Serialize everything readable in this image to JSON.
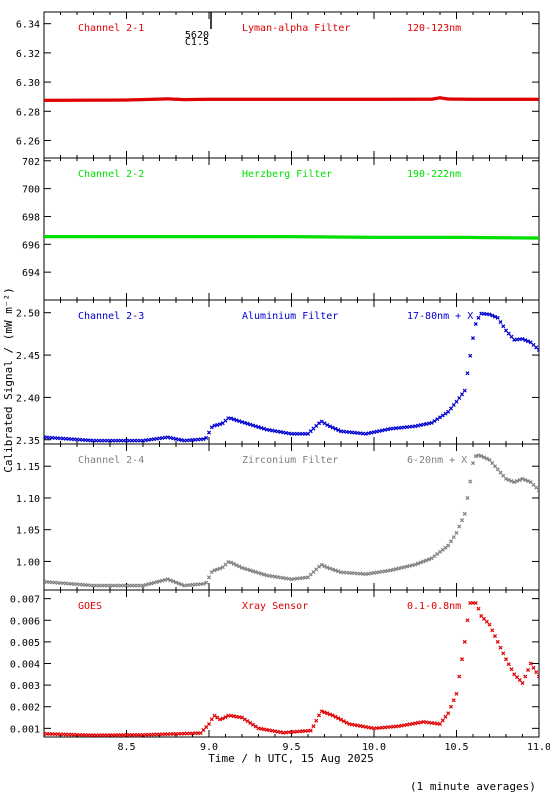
{
  "figure": {
    "ylabel": "Calibrated Signal / (mW m⁻²)",
    "xlabel": "Time / h UTC, 15 Aug 2025",
    "footnote": "(1 minute averages)",
    "xticks": [
      "8.5",
      "9.0",
      "9.5",
      "10.0",
      "10.5",
      "11.0"
    ]
  },
  "chart_data": [
    {
      "type": "scatter",
      "channel": "Channel 2-1",
      "filter": "Lyman-alpha Filter",
      "band": "120-123nm",
      "color": "#e00000",
      "xlim": [
        8.0,
        11.0
      ],
      "ylim": [
        6.248,
        6.348
      ],
      "yticks": [
        "6.26",
        "6.28",
        "6.30",
        "6.32",
        "6.34"
      ],
      "ytick_values": [
        6.26,
        6.28,
        6.3,
        6.32,
        6.34
      ],
      "annotation": {
        "text_top": "5620",
        "text_bottom": "C1.5",
        "x": 9.0
      },
      "series": [
        {
          "x": [
            8.0,
            8.5,
            8.75,
            8.85,
            9.0,
            9.5,
            10.0,
            10.35,
            10.4,
            10.45,
            10.6,
            11.0
          ],
          "y": [
            6.2875,
            6.2877,
            6.2885,
            6.288,
            6.2882,
            6.2882,
            6.2882,
            6.2883,
            6.2892,
            6.2884,
            6.2882,
            6.2882
          ]
        }
      ]
    },
    {
      "type": "scatter",
      "channel": "Channel 2-2",
      "filter": "Herzberg Filter",
      "band": "190-222nm",
      "color": "#00e000",
      "xlim": [
        8.0,
        11.0
      ],
      "ylim": [
        692.0,
        702.2
      ],
      "yticks": [
        "694",
        "696",
        "698",
        "700",
        "702"
      ],
      "ytick_values": [
        694,
        696,
        698,
        700,
        702
      ],
      "series": [
        {
          "x": [
            8.0,
            8.5,
            9.0,
            9.5,
            10.0,
            10.5,
            11.0
          ],
          "y": [
            696.55,
            696.55,
            696.55,
            696.55,
            696.5,
            696.5,
            696.45
          ]
        }
      ]
    },
    {
      "type": "scatter",
      "channel": "Channel 2-3",
      "filter": "Aluminium Filter",
      "band": "17-80nm + X",
      "color": "#0000d0",
      "xlim": [
        8.0,
        11.0
      ],
      "ylim": [
        2.345,
        2.515
      ],
      "yticks": [
        "2.35",
        "2.40",
        "2.45",
        "2.50"
      ],
      "ytick_values": [
        2.35,
        2.4,
        2.45,
        2.5
      ],
      "series": [
        {
          "x": [
            8.0,
            8.3,
            8.6,
            8.75,
            8.85,
            8.98,
            9.02,
            9.08,
            9.12,
            9.2,
            9.35,
            9.5,
            9.6,
            9.68,
            9.72,
            9.8,
            9.95,
            10.1,
            10.25,
            10.35,
            10.45,
            10.5,
            10.55,
            10.58,
            10.6,
            10.62,
            10.65,
            10.7,
            10.75,
            10.8,
            10.85,
            10.9,
            10.95,
            11.0
          ],
          "y": [
            2.353,
            2.349,
            2.349,
            2.353,
            2.349,
            2.351,
            2.366,
            2.369,
            2.376,
            2.371,
            2.362,
            2.357,
            2.357,
            2.372,
            2.367,
            2.36,
            2.357,
            2.363,
            2.366,
            2.37,
            2.383,
            2.395,
            2.408,
            2.445,
            2.47,
            2.49,
            2.499,
            2.498,
            2.494,
            2.479,
            2.468,
            2.469,
            2.465,
            2.456
          ]
        }
      ]
    },
    {
      "type": "scatter",
      "channel": "Channel 2-4",
      "filter": "Zirconium Filter",
      "band": "6-20nm + X",
      "color": "#808080",
      "xlim": [
        8.0,
        11.0
      ],
      "ylim": [
        0.955,
        1.185
      ],
      "yticks": [
        "1.00",
        "1.05",
        "1.10",
        "1.15"
      ],
      "ytick_values": [
        1.0,
        1.05,
        1.1,
        1.15
      ],
      "series": [
        {
          "x": [
            8.0,
            8.3,
            8.6,
            8.75,
            8.85,
            8.98,
            9.02,
            9.08,
            9.12,
            9.2,
            9.35,
            9.5,
            9.6,
            9.68,
            9.72,
            9.8,
            9.95,
            10.1,
            10.25,
            10.35,
            10.45,
            10.5,
            10.55,
            10.58,
            10.6,
            10.62,
            10.65,
            10.7,
            10.75,
            10.8,
            10.85,
            10.9,
            10.95,
            11.0
          ],
          "y": [
            0.968,
            0.962,
            0.962,
            0.972,
            0.962,
            0.965,
            0.985,
            0.99,
            1.0,
            0.99,
            0.978,
            0.972,
            0.975,
            0.995,
            0.99,
            0.983,
            0.98,
            0.986,
            0.995,
            1.005,
            1.025,
            1.045,
            1.075,
            1.12,
            1.155,
            1.168,
            1.166,
            1.16,
            1.145,
            1.13,
            1.125,
            1.13,
            1.125,
            1.112
          ]
        }
      ]
    },
    {
      "type": "scatter",
      "channel": "GOES",
      "filter": "Xray Sensor",
      "band": "0.1-0.8nm",
      "color": "#e00000",
      "xlim": [
        8.0,
        11.0
      ],
      "ylim": [
        0.0006,
        0.0074
      ],
      "yticks": [
        "0.001",
        "0.002",
        "0.003",
        "0.004",
        "0.005",
        "0.006",
        "0.007"
      ],
      "ytick_values": [
        0.001,
        0.002,
        0.003,
        0.004,
        0.005,
        0.006,
        0.007
      ],
      "series": [
        {
          "x": [
            8.0,
            8.3,
            8.6,
            8.95,
            9.0,
            9.03,
            9.07,
            9.12,
            9.2,
            9.3,
            9.45,
            9.62,
            9.68,
            9.75,
            9.85,
            10.0,
            10.15,
            10.3,
            10.4,
            10.45,
            10.5,
            10.55,
            10.58,
            10.62,
            10.65,
            10.7,
            10.75,
            10.8,
            10.85,
            10.9,
            10.95,
            11.0
          ],
          "y": [
            0.00075,
            0.00068,
            0.0007,
            0.00078,
            0.0012,
            0.0016,
            0.0014,
            0.0016,
            0.0015,
            0.001,
            0.0008,
            0.0009,
            0.0018,
            0.0016,
            0.0012,
            0.001,
            0.0011,
            0.0013,
            0.0012,
            0.0017,
            0.0026,
            0.005,
            0.0068,
            0.0068,
            0.0062,
            0.0058,
            0.005,
            0.0042,
            0.0035,
            0.0031,
            0.004,
            0.0034
          ]
        }
      ]
    }
  ]
}
